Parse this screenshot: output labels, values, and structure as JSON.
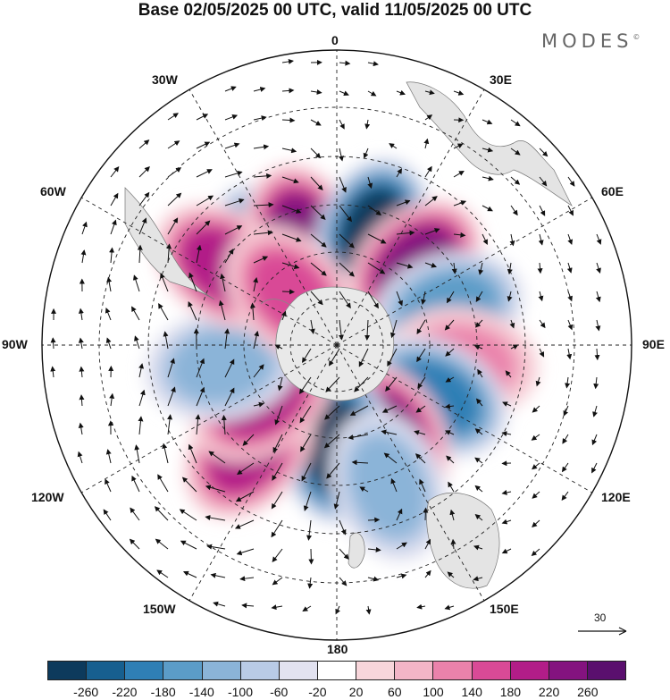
{
  "title": "Base 02/05/2025 00 UTC, valid 11/05/2025 00 UTC",
  "logo": "MODES",
  "logo_mark": "©",
  "longitude_labels": [
    "0",
    "30E",
    "60E",
    "90E",
    "120E",
    "150E",
    "180",
    "150W",
    "120W",
    "90W",
    "60W",
    "30W"
  ],
  "reference_vector": {
    "label": "30",
    "icon": "arrow-right-icon"
  },
  "colorbar": {
    "ticks": [
      "-260",
      "-220",
      "-180",
      "-140",
      "-100",
      "-60",
      "-20",
      "20",
      "60",
      "100",
      "140",
      "180",
      "220",
      "260"
    ],
    "colors": [
      "#0d3a5c",
      "#175f8f",
      "#2f7fb5",
      "#5b9cc8",
      "#8bb4d8",
      "#b9cbe6",
      "#e2e2f0",
      "#ffffff",
      "#f8d6db",
      "#f3b5c7",
      "#ea82ab",
      "#d94a96",
      "#b21d88",
      "#84137f",
      "#5a0f6e"
    ]
  },
  "map": {
    "projection": "south-polar-stereographic",
    "anomalies": [
      {
        "lon": -35,
        "lat": -52,
        "value": -250
      },
      {
        "lon": -18,
        "lat": -52,
        "value": 240
      },
      {
        "lon": 18,
        "lat": -50,
        "value": -260
      },
      {
        "lon": 45,
        "lat": -52,
        "value": 240
      },
      {
        "lon": 72,
        "lat": -50,
        "value": -170
      },
      {
        "lon": 98,
        "lat": -47,
        "value": 130
      },
      {
        "lon": 118,
        "lat": -52,
        "value": -190
      },
      {
        "lon": 150,
        "lat": -54,
        "value": 230
      },
      {
        "lon": 180,
        "lat": -55,
        "value": -260
      },
      {
        "lon": -140,
        "lat": -44,
        "value": 190
      },
      {
        "lon": -125,
        "lat": -58,
        "value": 190
      },
      {
        "lon": -100,
        "lat": -50,
        "value": -130
      },
      {
        "lon": -55,
        "lat": -44,
        "value": 180
      },
      {
        "lon": -42,
        "lat": -66,
        "value": 140
      },
      {
        "lon": 160,
        "lat": -40,
        "value": -110
      }
    ]
  }
}
